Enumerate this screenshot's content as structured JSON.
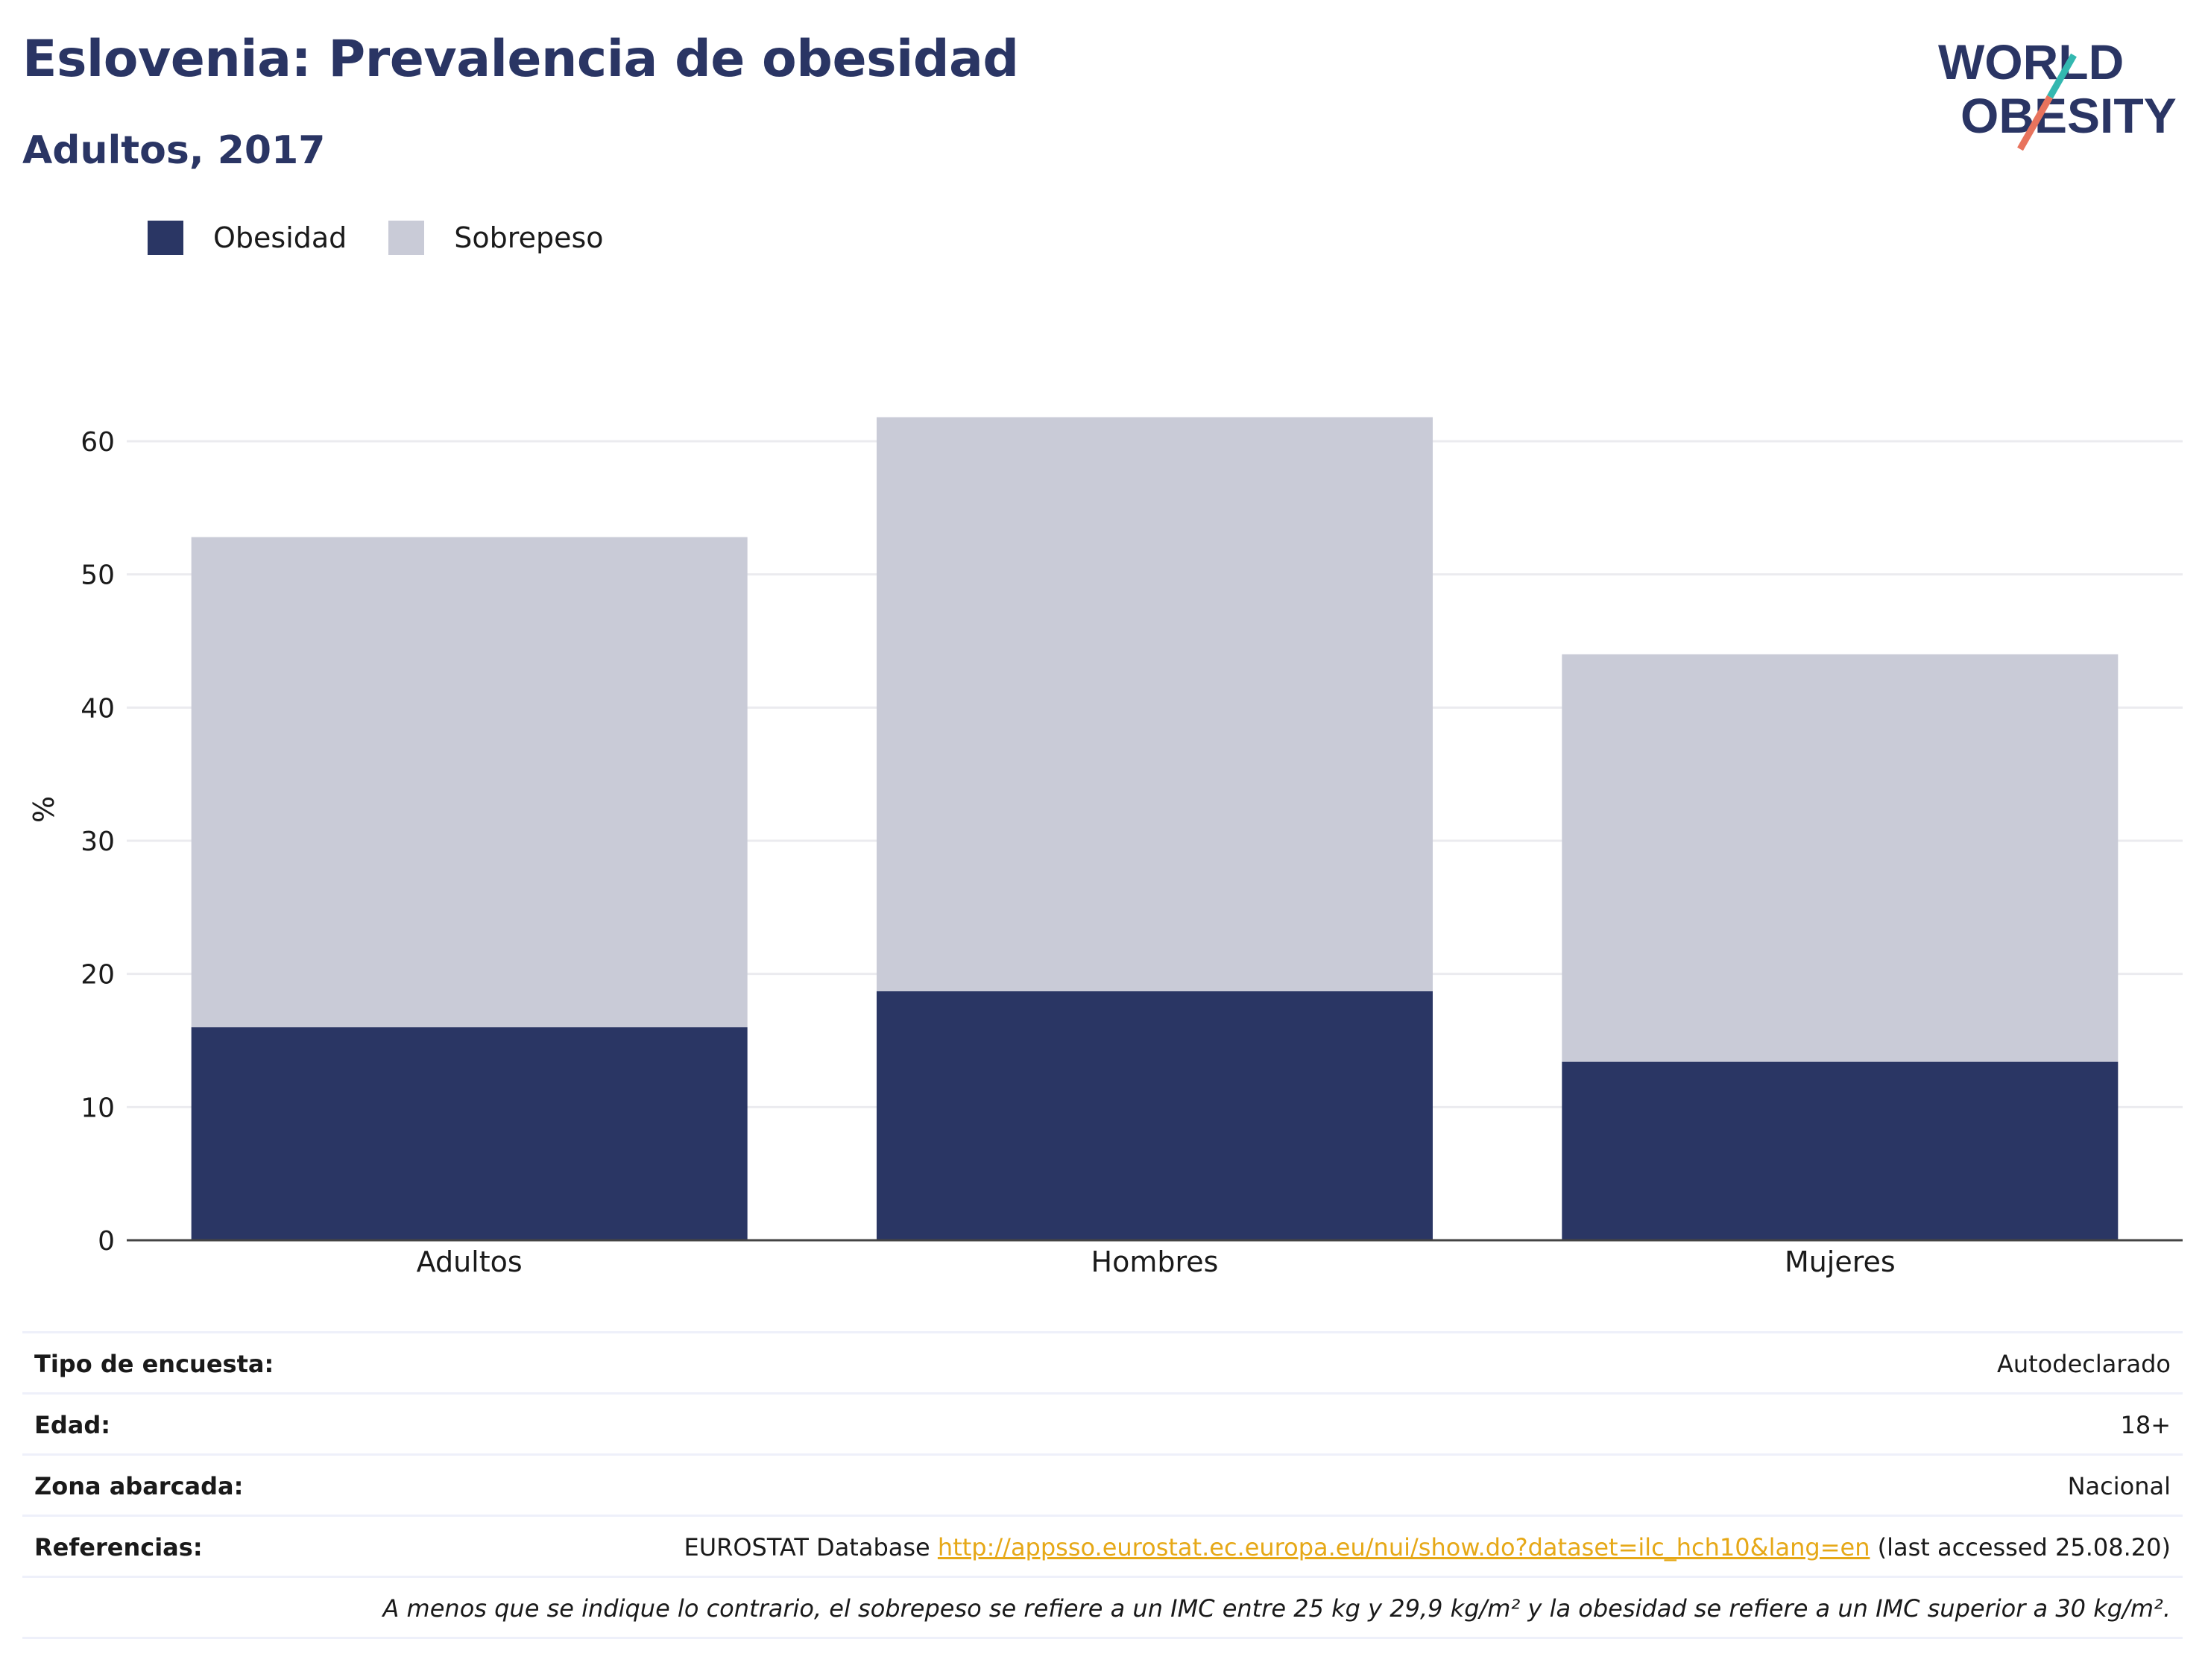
{
  "header": {
    "title": "Eslovenia: Prevalencia de obesidad",
    "subtitle": "Adultos, 2017"
  },
  "logo": {
    "line1": "WORLD",
    "line2": "OBESITY"
  },
  "legend": [
    {
      "label": "Obesidad",
      "color": "#2a3664"
    },
    {
      "label": "Sobrepeso",
      "color": "#c9cbd7"
    }
  ],
  "chart_data": {
    "type": "bar",
    "stacked": true,
    "categories": [
      "Adultos",
      "Hombres",
      "Mujeres"
    ],
    "series": [
      {
        "name": "Obesidad",
        "values": [
          16.0,
          18.7,
          13.4
        ],
        "color": "#2a3664"
      },
      {
        "name": "Sobrepeso",
        "values": [
          36.8,
          43.1,
          30.6
        ],
        "color": "#c9cbd7"
      }
    ],
    "ylabel": "%",
    "ylim": [
      0,
      65
    ],
    "yticks": [
      0,
      10,
      20,
      30,
      40,
      50,
      60
    ],
    "grid": true,
    "legend_position": "top-left"
  },
  "info": {
    "survey_label": "Tipo de encuesta:",
    "survey_value": "Autodeclarado",
    "age_label": "Edad:",
    "age_value": "18+",
    "area_label": "Zona abarcada:",
    "area_value": "Nacional",
    "ref_label": "Referencias:",
    "ref_prefix": "EUROSTAT Database",
    "ref_link": "http://appsso.eurostat.ec.europa.eu/nui/show.do?dataset=ilc_hch10&lang=en",
    "ref_suffix": "(last accessed 25.08.20)",
    "note": "A menos que se indique lo contrario, el sobrepeso se refiere a un IMC entre 25 kg y 29,9 kg/m² y la obesidad se refiere a un IMC superior a 30 kg/m²."
  }
}
